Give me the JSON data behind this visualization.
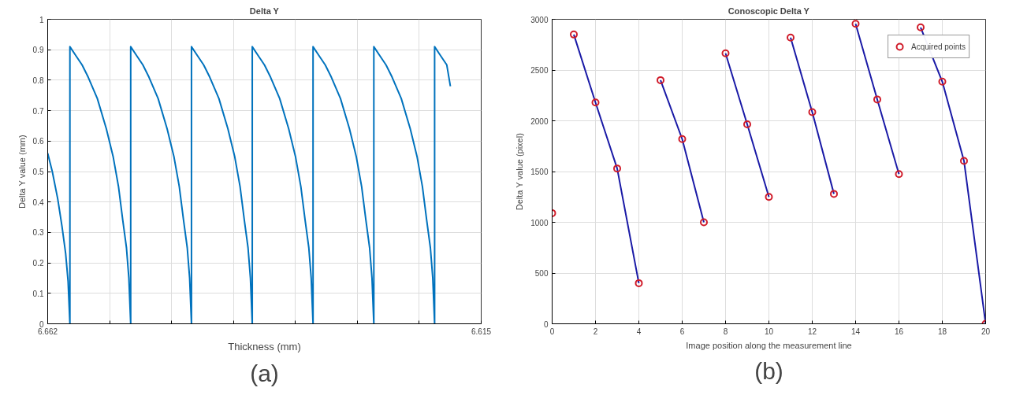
{
  "chart_data": [
    {
      "type": "line",
      "title": "Delta Y",
      "xlabel": "Thickness (mm)",
      "ylabel": "Delta Y value (mm)",
      "annotations": [
        "(a)"
      ],
      "xlim": [
        6.662,
        6.615
      ],
      "ylim": [
        0,
        1
      ],
      "xticks": [
        {
          "value": 6.662,
          "label": "6.662"
        },
        {
          "value": 6.65529,
          "label": null
        },
        {
          "value": 6.64857,
          "label": null
        },
        {
          "value": 6.64186,
          "label": null
        },
        {
          "value": 6.63514,
          "label": null
        },
        {
          "value": 6.62843,
          "label": null
        },
        {
          "value": 6.62171,
          "label": null
        },
        {
          "value": 6.615,
          "label": "6.615"
        }
      ],
      "yticks": [
        0,
        0.1,
        0.2,
        0.3,
        0.4,
        0.5,
        0.6,
        0.7,
        0.8,
        0.9,
        1
      ],
      "grid": true,
      "legend": false,
      "line_style": "solid",
      "marker": "none",
      "series": [
        {
          "color": "#0072bd",
          "x": [
            6.662,
            6.6615,
            6.66091,
            6.66045,
            6.66005,
            6.65979,
            6.65959,
            6.65959,
            6.65893,
            6.65827,
            6.65761,
            6.65662,
            6.65564,
            6.65491,
            6.65432,
            6.65386,
            6.65346,
            6.6532,
            6.653,
            6.653,
            6.65234,
            6.65168,
            6.65102,
            6.65003,
            6.64905,
            6.64832,
            6.64773,
            6.64727,
            6.64687,
            6.64661,
            6.64641,
            6.64641,
            6.64575,
            6.64509,
            6.64443,
            6.64344,
            6.64246,
            6.64173,
            6.64114,
            6.64068,
            6.64028,
            6.64002,
            6.63982,
            6.63982,
            6.63916,
            6.6385,
            6.63784,
            6.63685,
            6.63587,
            6.63514,
            6.63455,
            6.63409,
            6.63369,
            6.63343,
            6.63323,
            6.63323,
            6.63257,
            6.63191,
            6.63125,
            6.63026,
            6.62928,
            6.62855,
            6.62796,
            6.6275,
            6.6271,
            6.62684,
            6.62664,
            6.62664,
            6.62598,
            6.62532,
            6.62466,
            6.62367,
            6.62269,
            6.62196,
            6.62137,
            6.62091,
            6.62051,
            6.62025,
            6.62005,
            6.62005,
            6.61939,
            6.61873,
            6.61834
          ],
          "values": [
            0.56,
            0.5,
            0.41,
            0.32,
            0.23,
            0.14,
            0,
            0.91,
            0.88,
            0.85,
            0.81,
            0.74,
            0.64,
            0.55,
            0.45,
            0.34,
            0.25,
            0.15,
            0,
            0.91,
            0.88,
            0.85,
            0.81,
            0.74,
            0.64,
            0.55,
            0.45,
            0.34,
            0.25,
            0.15,
            0,
            0.91,
            0.88,
            0.85,
            0.81,
            0.74,
            0.64,
            0.55,
            0.45,
            0.34,
            0.25,
            0.15,
            0,
            0.91,
            0.88,
            0.85,
            0.81,
            0.74,
            0.64,
            0.55,
            0.45,
            0.34,
            0.25,
            0.15,
            0,
            0.91,
            0.88,
            0.85,
            0.81,
            0.74,
            0.64,
            0.55,
            0.45,
            0.34,
            0.25,
            0.15,
            0,
            0.91,
            0.88,
            0.85,
            0.81,
            0.74,
            0.64,
            0.55,
            0.45,
            0.34,
            0.25,
            0.15,
            0,
            0.91,
            0.88,
            0.85,
            0.78
          ]
        }
      ]
    },
    {
      "type": "scatter",
      "title": "Conoscopic Delta Y",
      "xlabel": "Image position along the measurement line",
      "ylabel": "Delta Y value (pixel)",
      "annotations": [
        "(b)"
      ],
      "xlim": [
        0,
        20
      ],
      "ylim": [
        0,
        3000
      ],
      "xticks": [
        0,
        2,
        4,
        6,
        8,
        10,
        12,
        14,
        16,
        18,
        20
      ],
      "yticks": [
        0,
        500,
        1000,
        1500,
        2000,
        2500,
        3000
      ],
      "grid": true,
      "legend": "top right",
      "series": [
        {
          "type": "line",
          "color": "#1a1aa6",
          "marker": "none",
          "x": [
            1,
            2,
            3,
            4
          ],
          "values": [
            2850,
            2180,
            1530,
            400
          ]
        },
        {
          "type": "line",
          "color": "#1a1aa6",
          "marker": "none",
          "x": [
            5,
            6,
            7
          ],
          "values": [
            2400,
            1820,
            1000
          ]
        },
        {
          "type": "line",
          "color": "#1a1aa6",
          "marker": "none",
          "x": [
            8,
            9,
            10
          ],
          "values": [
            2665,
            1965,
            1250
          ]
        },
        {
          "type": "line",
          "color": "#1a1aa6",
          "marker": "none",
          "x": [
            11,
            12,
            13
          ],
          "values": [
            2820,
            2085,
            1280
          ]
        },
        {
          "type": "line",
          "color": "#1a1aa6",
          "marker": "none",
          "x": [
            14,
            15,
            16
          ],
          "values": [
            2955,
            2210,
            1475
          ]
        },
        {
          "type": "line",
          "color": "#1a1aa6",
          "marker": "none",
          "x": [
            17,
            18,
            19,
            20
          ],
          "values": [
            2920,
            2385,
            1605,
            0
          ]
        },
        {
          "type": "scatter",
          "name": "Acquired points",
          "color": "#d01c2a",
          "marker": "circle",
          "x": [
            0,
            1,
            2,
            3,
            4,
            5,
            6,
            7,
            8,
            9,
            10,
            11,
            12,
            13,
            14,
            15,
            16,
            17,
            18,
            19,
            20
          ],
          "values": [
            1090,
            2850,
            2180,
            1530,
            400,
            2400,
            1820,
            1000,
            2665,
            1965,
            1250,
            2820,
            2085,
            1280,
            2955,
            2210,
            1475,
            2920,
            2385,
            1605,
            0
          ]
        }
      ]
    }
  ]
}
